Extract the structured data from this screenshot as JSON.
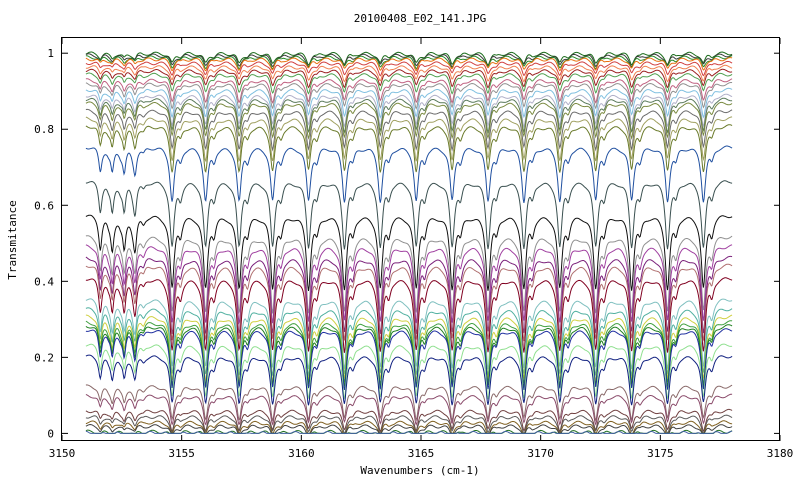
{
  "chart_data": {
    "type": "line",
    "title": "20100408_E02_141.JPG",
    "xlabel": "Wavenumbers (cm-1)",
    "ylabel": "Transmitance",
    "xlim": [
      3150,
      3180
    ],
    "ylim": [
      -0.02,
      1.04
    ],
    "grid": false,
    "legend": "none",
    "x_ticks": [
      "3150",
      "3155",
      "3160",
      "3165",
      "3170",
      "3175",
      "3180"
    ],
    "y_ticks": [
      "0",
      "0.2",
      "0.4",
      "0.6",
      "0.8",
      "1"
    ],
    "x_range_data": [
      3151.0,
      3178.0
    ],
    "absorption_lines_cm1": [
      3151.6,
      3152.1,
      3152.6,
      3153.05,
      3154.6,
      3156.0,
      3157.4,
      3158.8,
      3160.3,
      3161.8,
      3163.3,
      3164.8,
      3166.3,
      3167.8,
      3169.3,
      3170.8,
      3172.3,
      3173.8,
      3175.3,
      3176.8
    ],
    "series": [
      {
        "baseline": 1.0,
        "color": "#1a6b1a"
      },
      {
        "baseline": 0.995,
        "color": "#3a3a3a"
      },
      {
        "baseline": 0.99,
        "color": "#2a8a2a"
      },
      {
        "baseline": 0.985,
        "color": "#e87010"
      },
      {
        "baseline": 0.975,
        "color": "#d04040"
      },
      {
        "baseline": 0.965,
        "color": "#f08050"
      },
      {
        "baseline": 0.955,
        "color": "#9a2020"
      },
      {
        "baseline": 0.945,
        "color": "#50a050"
      },
      {
        "baseline": 0.93,
        "color": "#c06080"
      },
      {
        "baseline": 0.92,
        "color": "#909090"
      },
      {
        "baseline": 0.905,
        "color": "#80c0e0"
      },
      {
        "baseline": 0.89,
        "color": "#b0b0c8"
      },
      {
        "baseline": 0.88,
        "color": "#5a7a5a"
      },
      {
        "baseline": 0.87,
        "color": "#7a8a40"
      },
      {
        "baseline": 0.85,
        "color": "#6a6a6a"
      },
      {
        "baseline": 0.83,
        "color": "#a0a060"
      },
      {
        "baseline": 0.81,
        "color": "#6a7a2a"
      },
      {
        "baseline": 0.755,
        "color": "#2050a0"
      },
      {
        "baseline": 0.665,
        "color": "#3a5050"
      },
      {
        "baseline": 0.575,
        "color": "#101010"
      },
      {
        "baseline": 0.52,
        "color": "#909090"
      },
      {
        "baseline": 0.495,
        "color": "#a040a0"
      },
      {
        "baseline": 0.465,
        "color": "#7a207a"
      },
      {
        "baseline": 0.445,
        "color": "#b07070"
      },
      {
        "baseline": 0.41,
        "color": "#800020"
      },
      {
        "baseline": 0.355,
        "color": "#80c0c0"
      },
      {
        "baseline": 0.33,
        "color": "#50b0a0"
      },
      {
        "baseline": 0.31,
        "color": "#d0d040"
      },
      {
        "baseline": 0.295,
        "color": "#40a040"
      },
      {
        "baseline": 0.285,
        "color": "#208020"
      },
      {
        "baseline": 0.275,
        "color": "#2030a0"
      },
      {
        "baseline": 0.235,
        "color": "#90e090"
      },
      {
        "baseline": 0.205,
        "color": "#102080"
      },
      {
        "baseline": 0.125,
        "color": "#8a6a6a"
      },
      {
        "baseline": 0.1,
        "color": "#8a4a6a"
      },
      {
        "baseline": 0.06,
        "color": "#704040"
      },
      {
        "baseline": 0.045,
        "color": "#5a5a5a"
      },
      {
        "baseline": 0.03,
        "color": "#806020"
      },
      {
        "baseline": 0.02,
        "color": "#404040"
      },
      {
        "baseline": 0.005,
        "color": "#207020"
      },
      {
        "baseline": 0.002,
        "color": "#4060a0"
      }
    ]
  }
}
